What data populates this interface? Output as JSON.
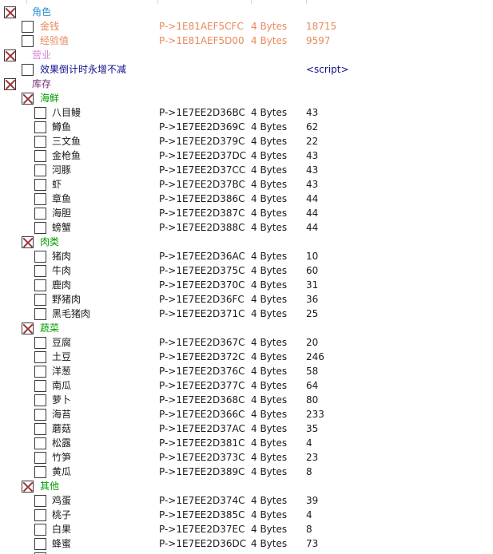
{
  "app": {
    "kind": "cheat-table-address-list"
  },
  "colors": {
    "blue": "#2e96d2",
    "orange": "#e78a5e",
    "violet": "#d884d8",
    "navy": "#10108e",
    "purple": "#753074",
    "green": "#009c00",
    "default": "#1a1a1a",
    "x_mark": "#9e3439",
    "checkbox_border": "#3a3a3a",
    "tick": "#d9d9d9"
  },
  "header_ticks_x": [
    33,
    197,
    314,
    383
  ],
  "table": {
    "type_label_common": "4 Bytes",
    "rows": [
      {
        "level": 0,
        "checked": true,
        "color": "blue",
        "desc": "角色",
        "addr": "",
        "type": "",
        "value": ""
      },
      {
        "level": 1,
        "checked": false,
        "color": "orange",
        "desc": "金钱",
        "addr": "P->1E81AEF5CFC",
        "type": "4 Bytes",
        "value": "18715"
      },
      {
        "level": 1,
        "checked": false,
        "color": "orange",
        "desc": "经验值",
        "addr": "P->1E81AEF5D00",
        "type": "4 Bytes",
        "value": "9597"
      },
      {
        "level": 0,
        "checked": true,
        "color": "violet",
        "desc": "营业",
        "addr": "",
        "type": "",
        "value": ""
      },
      {
        "level": 1,
        "checked": false,
        "color": "navy",
        "desc": "效果倒计时永增不减",
        "addr": "",
        "type": "",
        "value": "<script>"
      },
      {
        "level": 0,
        "checked": true,
        "color": "purple",
        "desc": "库存",
        "addr": "",
        "type": "",
        "value": ""
      },
      {
        "level": 1,
        "checked": true,
        "color": "green",
        "desc": "海鲜",
        "addr": "",
        "type": "",
        "value": ""
      },
      {
        "level": 2,
        "checked": false,
        "color": "default",
        "desc": "八目鳗",
        "addr": "P->1E7EE2D36BC",
        "type": "4 Bytes",
        "value": "43"
      },
      {
        "level": 2,
        "checked": false,
        "color": "default",
        "desc": "鳟鱼",
        "addr": "P->1E7EE2D369C",
        "type": "4 Bytes",
        "value": "62"
      },
      {
        "level": 2,
        "checked": false,
        "color": "default",
        "desc": "三文鱼",
        "addr": "P->1E7EE2D379C",
        "type": "4 Bytes",
        "value": "22"
      },
      {
        "level": 2,
        "checked": false,
        "color": "default",
        "desc": "金枪鱼",
        "addr": "P->1E7EE2D37DC",
        "type": "4 Bytes",
        "value": "43"
      },
      {
        "level": 2,
        "checked": false,
        "color": "default",
        "desc": "河豚",
        "addr": "P->1E7EE2D37CC",
        "type": "4 Bytes",
        "value": "43"
      },
      {
        "level": 2,
        "checked": false,
        "color": "default",
        "desc": "虾",
        "addr": "P->1E7EE2D37BC",
        "type": "4 Bytes",
        "value": "43"
      },
      {
        "level": 2,
        "checked": false,
        "color": "default",
        "desc": "章鱼",
        "addr": "P->1E7EE2D386C",
        "type": "4 Bytes",
        "value": "44"
      },
      {
        "level": 2,
        "checked": false,
        "color": "default",
        "desc": "海胆",
        "addr": "P->1E7EE2D387C",
        "type": "4 Bytes",
        "value": "44"
      },
      {
        "level": 2,
        "checked": false,
        "color": "default",
        "desc": "螃蟹",
        "addr": "P->1E7EE2D388C",
        "type": "4 Bytes",
        "value": "44"
      },
      {
        "level": 1,
        "checked": true,
        "color": "green",
        "desc": "肉类",
        "addr": "",
        "type": "",
        "value": ""
      },
      {
        "level": 2,
        "checked": false,
        "color": "default",
        "desc": "猪肉",
        "addr": "P->1E7EE2D36AC",
        "type": "4 Bytes",
        "value": "10"
      },
      {
        "level": 2,
        "checked": false,
        "color": "default",
        "desc": "牛肉",
        "addr": "P->1E7EE2D375C",
        "type": "4 Bytes",
        "value": "60"
      },
      {
        "level": 2,
        "checked": false,
        "color": "default",
        "desc": "鹿肉",
        "addr": "P->1E7EE2D370C",
        "type": "4 Bytes",
        "value": "31"
      },
      {
        "level": 2,
        "checked": false,
        "color": "default",
        "desc": "野猪肉",
        "addr": "P->1E7EE2D36FC",
        "type": "4 Bytes",
        "value": "36"
      },
      {
        "level": 2,
        "checked": false,
        "color": "default",
        "desc": "黑毛猪肉",
        "addr": "P->1E7EE2D371C",
        "type": "4 Bytes",
        "value": "25"
      },
      {
        "level": 1,
        "checked": true,
        "color": "green",
        "desc": "蔬菜",
        "addr": "",
        "type": "",
        "value": ""
      },
      {
        "level": 2,
        "checked": false,
        "color": "default",
        "desc": "豆腐",
        "addr": "P->1E7EE2D367C",
        "type": "4 Bytes",
        "value": "20"
      },
      {
        "level": 2,
        "checked": false,
        "color": "default",
        "desc": "土豆",
        "addr": "P->1E7EE2D372C",
        "type": "4 Bytes",
        "value": "246"
      },
      {
        "level": 2,
        "checked": false,
        "color": "default",
        "desc": "洋葱",
        "addr": "P->1E7EE2D376C",
        "type": "4 Bytes",
        "value": "58"
      },
      {
        "level": 2,
        "checked": false,
        "color": "default",
        "desc": "南瓜",
        "addr": "P->1E7EE2D377C",
        "type": "4 Bytes",
        "value": "64"
      },
      {
        "level": 2,
        "checked": false,
        "color": "default",
        "desc": "萝卜",
        "addr": "P->1E7EE2D368C",
        "type": "4 Bytes",
        "value": "80"
      },
      {
        "level": 2,
        "checked": false,
        "color": "default",
        "desc": "海苔",
        "addr": "P->1E7EE2D366C",
        "type": "4 Bytes",
        "value": "233"
      },
      {
        "level": 2,
        "checked": false,
        "color": "default",
        "desc": "蘑菇",
        "addr": "P->1E7EE2D37AC",
        "type": "4 Bytes",
        "value": "35"
      },
      {
        "level": 2,
        "checked": false,
        "color": "default",
        "desc": "松露",
        "addr": "P->1E7EE2D381C",
        "type": "4 Bytes",
        "value": "4"
      },
      {
        "level": 2,
        "checked": false,
        "color": "default",
        "desc": "竹笋",
        "addr": "P->1E7EE2D373C",
        "type": "4 Bytes",
        "value": "23"
      },
      {
        "level": 2,
        "checked": false,
        "color": "default",
        "desc": "黄瓜",
        "addr": "P->1E7EE2D389C",
        "type": "4 Bytes",
        "value": "8"
      },
      {
        "level": 1,
        "checked": true,
        "color": "green",
        "desc": "其他",
        "addr": "",
        "type": "",
        "value": ""
      },
      {
        "level": 2,
        "checked": false,
        "color": "default",
        "desc": "鸡蛋",
        "addr": "P->1E7EE2D374C",
        "type": "4 Bytes",
        "value": "39"
      },
      {
        "level": 2,
        "checked": false,
        "color": "default",
        "desc": "桃子",
        "addr": "P->1E7EE2D385C",
        "type": "4 Bytes",
        "value": "4"
      },
      {
        "level": 2,
        "checked": false,
        "color": "default",
        "desc": "白果",
        "addr": "P->1E7EE2D37EC",
        "type": "4 Bytes",
        "value": "8"
      },
      {
        "level": 2,
        "checked": false,
        "color": "default",
        "desc": "蜂蜜",
        "addr": "P->1E7EE2D36DC",
        "type": "4 Bytes",
        "value": "73"
      }
    ],
    "partial_bottom_row": {
      "level": 2,
      "checked": false
    }
  }
}
